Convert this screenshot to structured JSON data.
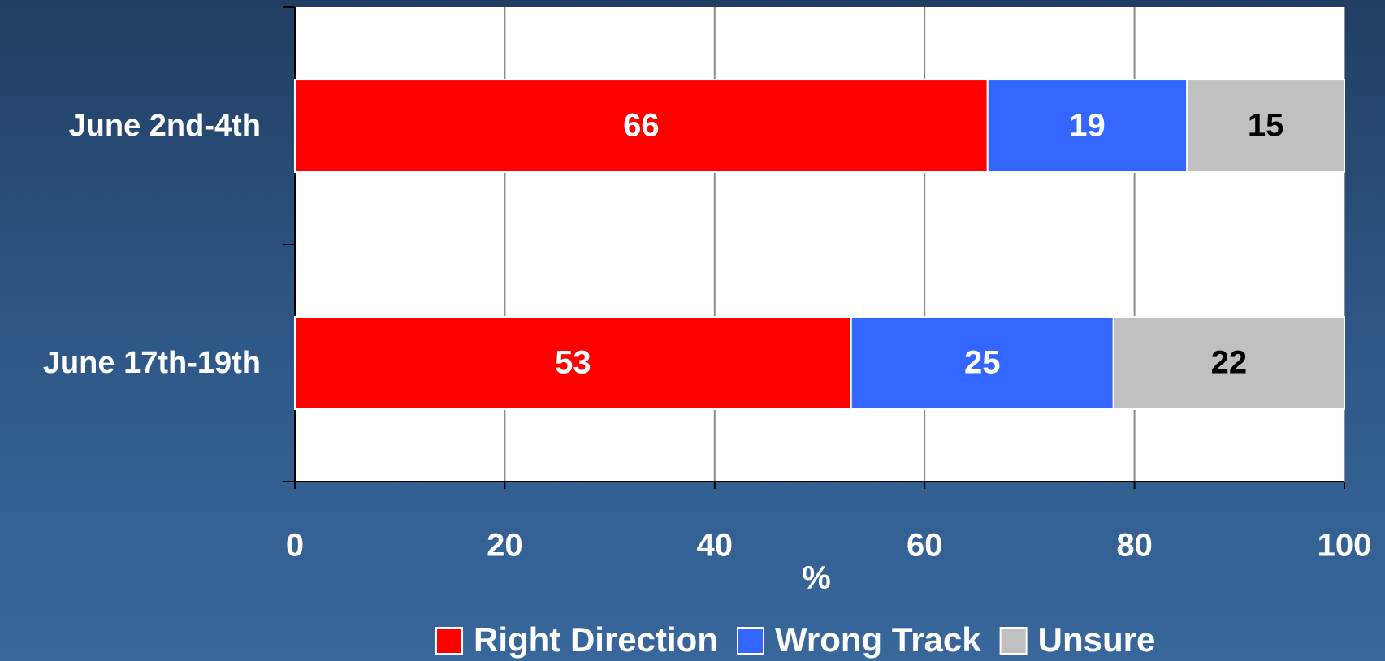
{
  "chart_data": {
    "type": "stacked-bar-horizontal",
    "categories": [
      "June 2nd-4th",
      "June 17th-19th"
    ],
    "series": [
      {
        "name": "Right Direction",
        "color": "#ff0000",
        "label_color": "#ffffff",
        "values": [
          66,
          53
        ]
      },
      {
        "name": "Wrong Track",
        "color": "#3366ff",
        "label_color": "#ffffff",
        "values": [
          19,
          25
        ]
      },
      {
        "name": "Unsure",
        "color": "#c0c0c0",
        "label_color": "#000000",
        "values": [
          15,
          22
        ]
      }
    ],
    "xlabel": "%",
    "xlim": [
      0,
      100
    ],
    "xticks": [
      0,
      20,
      40,
      60,
      80,
      100
    ],
    "grid": true,
    "legend": "bottom"
  }
}
